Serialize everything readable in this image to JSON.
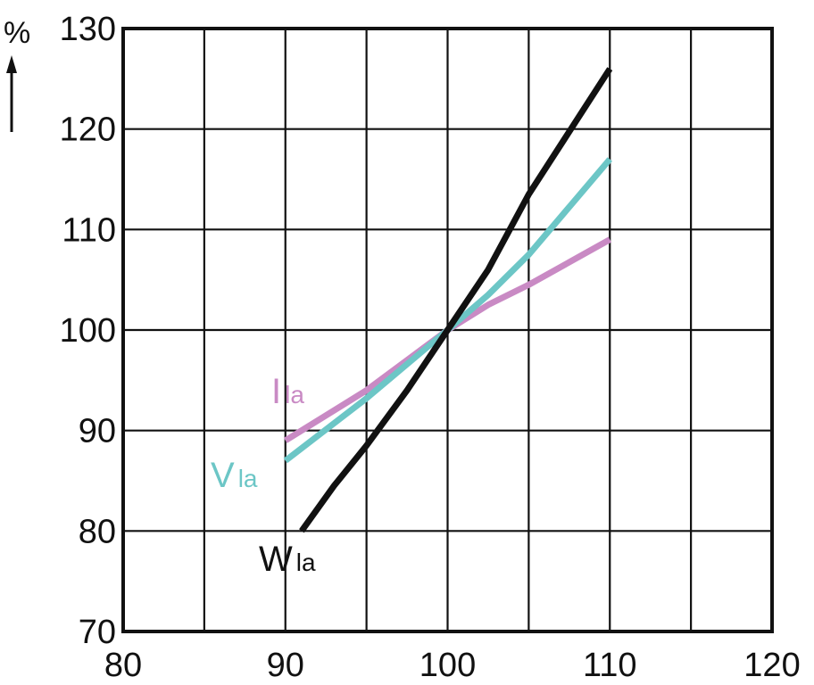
{
  "chart_data": {
    "type": "line",
    "ylabel": "%",
    "xlim": [
      80,
      120
    ],
    "ylim": [
      70,
      130
    ],
    "x_ticks": [
      80,
      90,
      100,
      110,
      120
    ],
    "y_ticks": [
      70,
      80,
      90,
      100,
      110,
      120,
      130
    ],
    "grid": true,
    "series": [
      {
        "name": "I",
        "subscript": "la",
        "color": "#c98ac4",
        "points": [
          [
            90,
            89
          ],
          [
            95,
            94
          ],
          [
            97.5,
            97
          ],
          [
            100,
            100
          ],
          [
            102.5,
            102.5
          ],
          [
            105,
            104.5
          ],
          [
            110,
            109
          ]
        ]
      },
      {
        "name": "V",
        "subscript": "la",
        "color": "#6cc6c6",
        "points": [
          [
            90,
            87
          ],
          [
            95,
            93.2
          ],
          [
            100,
            100
          ],
          [
            102.5,
            103.5
          ],
          [
            105,
            107.5
          ],
          [
            110,
            117
          ]
        ]
      },
      {
        "name": "W",
        "subscript": "la",
        "color": "#111111",
        "points": [
          [
            91,
            80
          ],
          [
            93,
            84.5
          ],
          [
            95,
            88.5
          ],
          [
            97.5,
            94
          ],
          [
            100,
            100
          ],
          [
            102.5,
            106
          ],
          [
            105,
            113.5
          ],
          [
            110,
            126
          ]
        ]
      }
    ]
  }
}
